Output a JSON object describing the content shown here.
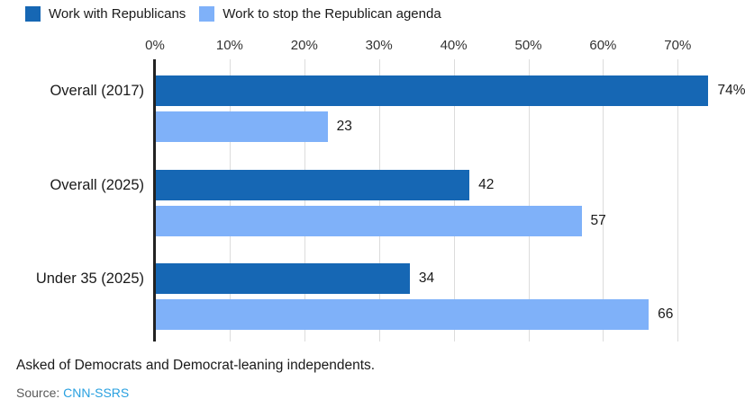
{
  "chart_data": {
    "type": "bar",
    "orientation": "horizontal",
    "title": "",
    "categories": [
      "Overall (2017)",
      "Overall (2025)",
      "Under 35 (2025)"
    ],
    "series": [
      {
        "name": "Work with Republicans",
        "color": "#1667b4",
        "values": [
          74,
          42,
          34
        ],
        "value_labels": [
          "74%",
          "42",
          "34"
        ]
      },
      {
        "name": "Work to stop the Republican agenda",
        "color": "#7fb1f9",
        "values": [
          23,
          57,
          66
        ],
        "value_labels": [
          "23",
          "57",
          "66"
        ]
      }
    ],
    "x_ticks": [
      {
        "value": 0,
        "label": "0%"
      },
      {
        "value": 10,
        "label": "10%"
      },
      {
        "value": 20,
        "label": "20%"
      },
      {
        "value": 30,
        "label": "30%"
      },
      {
        "value": 40,
        "label": "40%"
      },
      {
        "value": 50,
        "label": "50%"
      },
      {
        "value": 60,
        "label": "60%"
      },
      {
        "value": 70,
        "label": "70%"
      }
    ],
    "xlim": [
      0,
      77
    ],
    "grid": true,
    "legend_position": "top-left"
  },
  "footer": {
    "note": "Asked of Democrats and Democrat-leaning independents.",
    "source_label": "Source:",
    "source_link": "CNN-SSRS"
  },
  "colors": {
    "axis": "#222222",
    "gridline": "#dcdcdc",
    "text": "#1a1a1a",
    "source_text": "#595959",
    "link": "#28a0e0"
  }
}
